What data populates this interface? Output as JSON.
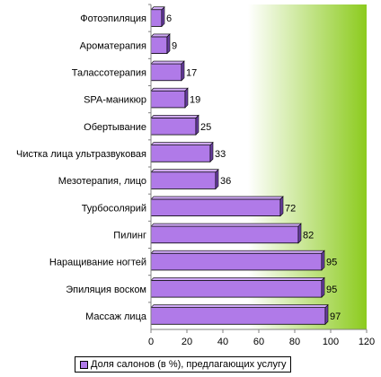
{
  "chart_data": {
    "type": "bar",
    "orientation": "horizontal",
    "categories": [
      "Фотоэпиляция",
      "Ароматерапия",
      "Талассотерапия",
      "SPA-маникюр",
      "Обертывание",
      "Чистка лица ультразвуковая",
      "Мезотерапия, лицо",
      "Турбосолярий",
      "Пилинг",
      "Наращивание ногтей",
      "Эпиляция воском",
      "Массаж лица"
    ],
    "series": [
      {
        "name": "Доля салонов (в %), предлагающих услугу",
        "values": [
          6,
          9,
          17,
          19,
          25,
          33,
          36,
          72,
          82,
          95,
          95,
          97
        ]
      }
    ],
    "xlim": [
      0,
      120
    ],
    "x_ticks": [
      "0",
      "20",
      "40",
      "60",
      "80",
      "100",
      "120"
    ],
    "data_labels": true,
    "grid": false,
    "legend_position": "bottom",
    "colors": {
      "bar_fill": "#b07ae8",
      "bar_stroke": "#000000",
      "plot_bg_start": "#ffffff",
      "plot_bg_end": "#8ccb1e"
    }
  }
}
